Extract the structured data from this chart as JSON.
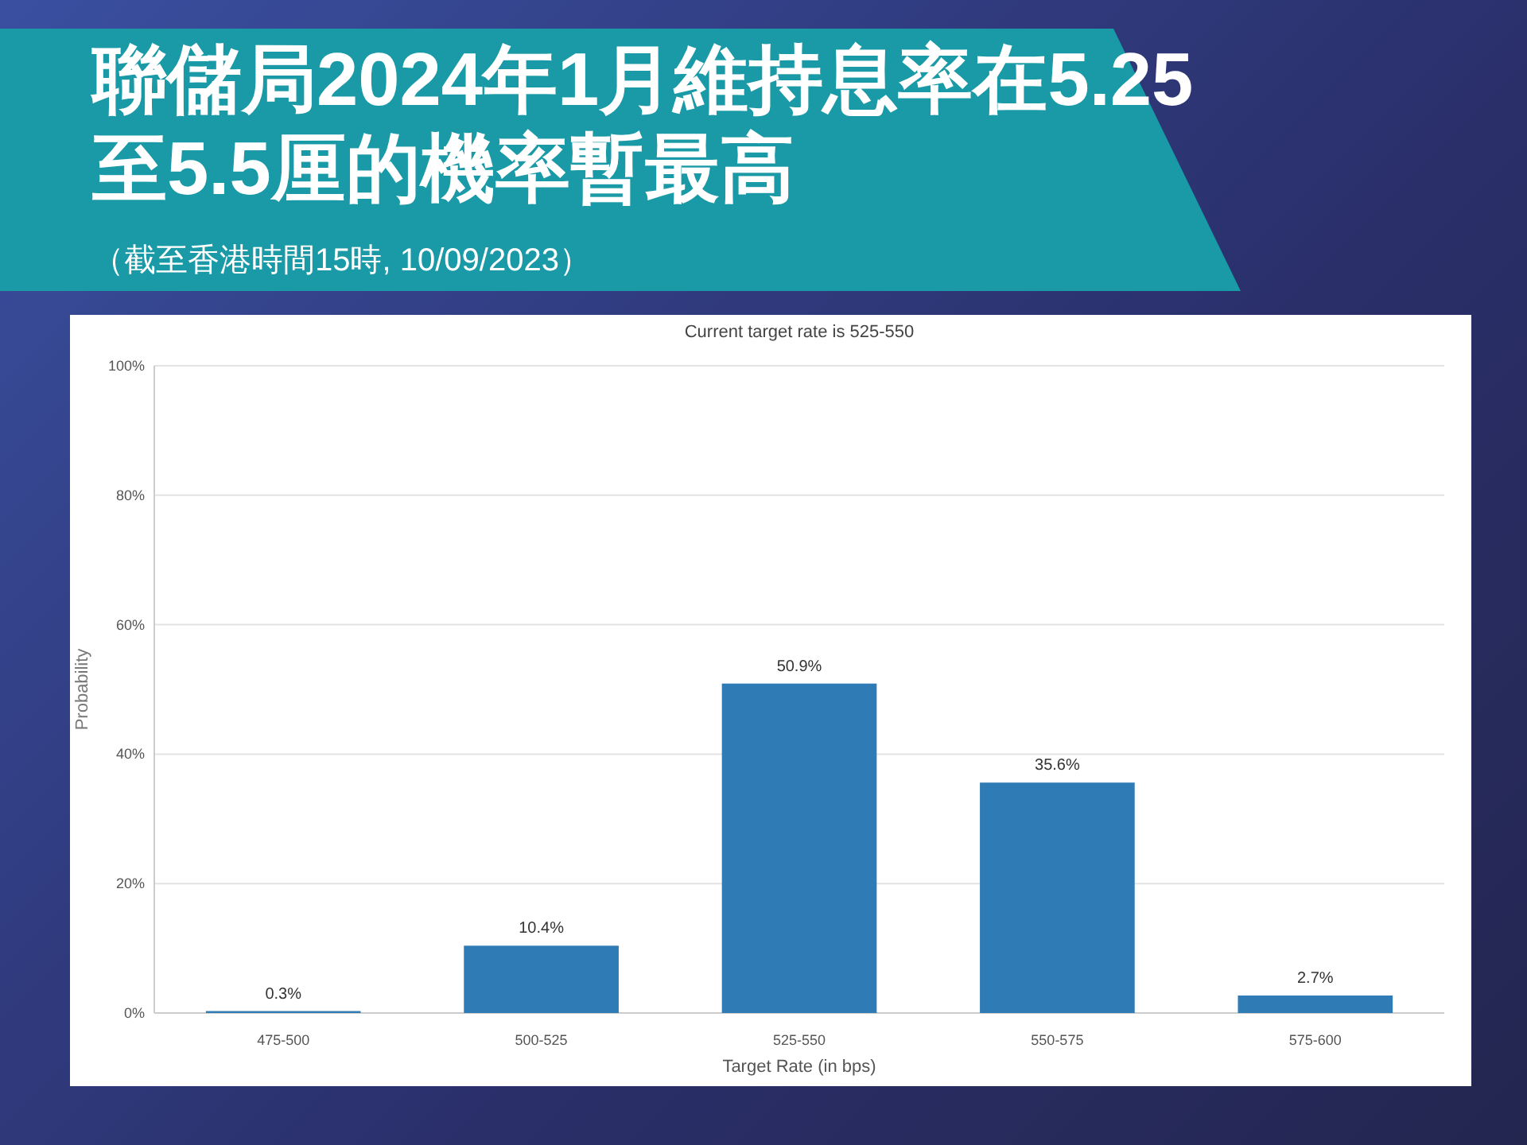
{
  "chart_data": {
    "type": "bar",
    "title": "聯儲局2024年1月維持息率在5.25至5.5厘的機率暫最高",
    "subtitle": "Current target rate is 525-550",
    "annotations": [
      "（截至香港時間15時, 10/09/2023）"
    ],
    "xlabel": "Target Rate (in bps)",
    "ylabel": "Probability",
    "categories": [
      "475-500",
      "500-525",
      "525-550",
      "550-575",
      "575-600"
    ],
    "values": [
      0.3,
      10.4,
      50.9,
      35.6,
      2.7
    ],
    "value_labels": [
      "0.3%",
      "10.4%",
      "50.9%",
      "35.6%",
      "2.7%"
    ],
    "color": "#2e7bb6",
    "ylim": [
      0,
      100
    ],
    "yticks": [
      {
        "value": 0,
        "label": "0%"
      },
      {
        "value": 20,
        "label": "20%"
      },
      {
        "value": 40,
        "label": "40%"
      },
      {
        "value": 60,
        "label": "60%"
      },
      {
        "value": 80,
        "label": "80%"
      },
      {
        "value": 100,
        "label": "100%"
      }
    ],
    "grid": "y"
  }
}
